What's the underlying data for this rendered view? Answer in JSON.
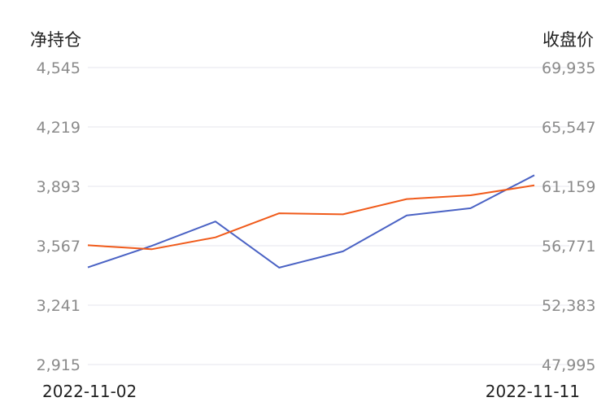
{
  "chart_data": {
    "type": "line",
    "x_tick_labels": [
      "2022-11-02",
      "2022-11-11"
    ],
    "left_axis": {
      "title": "净持仓",
      "ticks": [
        "4,545",
        "4,219",
        "3,893",
        "3,567",
        "3,241",
        "2,915"
      ],
      "range": [
        2915,
        4545
      ]
    },
    "right_axis": {
      "title": "收盘价",
      "ticks": [
        "69,935",
        "65,547",
        "61,159",
        "56,771",
        "52,383",
        "47,995"
      ],
      "range": [
        47995,
        69935
      ]
    },
    "grid": true,
    "series": [
      {
        "axis": "left",
        "color": "#4a62c4",
        "values": [
          3448,
          3566,
          3700,
          3447,
          3536,
          3733,
          3773,
          3954
        ]
      },
      {
        "axis": "right",
        "color": "#f05a1a",
        "values": [
          56810,
          56510,
          57390,
          59170,
          59090,
          60220,
          60500,
          61230
        ]
      }
    ]
  }
}
